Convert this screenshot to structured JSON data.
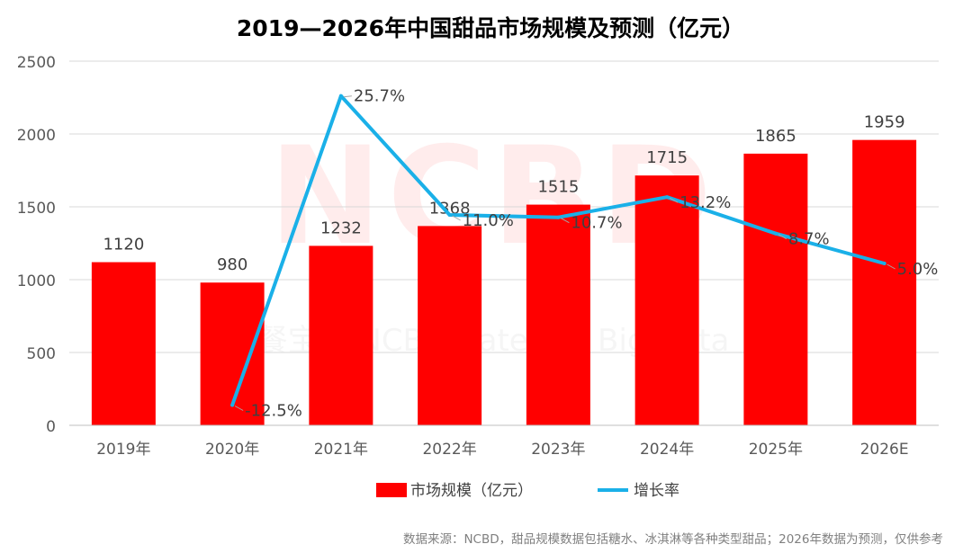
{
  "chart_data": {
    "type": "bar",
    "title": "2019—2026年中国甜品市场规模及预测（亿元）",
    "categories": [
      "2019年",
      "2020年",
      "2021年",
      "2022年",
      "2023年",
      "2024年",
      "2025年",
      "2026E"
    ],
    "series": [
      {
        "name": "市场规模（亿元）",
        "type": "bar",
        "values": [
          1120,
          980,
          1232,
          1368,
          1515,
          1715,
          1865,
          1959
        ],
        "labels": [
          "1120",
          "980",
          "1232",
          "1368",
          "1515",
          "1715",
          "1865",
          "1959"
        ],
        "color": "#ff0000"
      },
      {
        "name": "增长率",
        "type": "line",
        "values": [
          null,
          -12.5,
          25.7,
          11.0,
          10.7,
          13.2,
          8.7,
          5.0
        ],
        "labels": [
          "",
          "-12.5%",
          "25.7%",
          "11.0%",
          "10.7%",
          "13.2%",
          "8.7%",
          "5.0%"
        ],
        "color": "#1ab0e8"
      }
    ],
    "ylim": [
      0,
      2500
    ],
    "yticks": [
      0,
      500,
      1000,
      1500,
      2000,
      2500
    ],
    "ytick_labels": [
      "0",
      "500",
      "1000",
      "1500",
      "2000",
      "2500"
    ],
    "growth_range": [
      -15,
      30
    ],
    "grid": true,
    "legend": "bottom-center"
  },
  "watermark": {
    "logo": "NCBD",
    "text": "餐宝典 NCBD Catering Big Data"
  },
  "footer": {
    "source": "数据来源：NCBD，甜品规模数据包括糖水、冰淇淋等各种类型甜品；2026年数据为预测，仅供参考"
  },
  "colors": {
    "bar": "#ff0000",
    "line": "#1ab0e8",
    "grid": "#d9d9d9",
    "axis_text": "#595959",
    "title": "#000000"
  }
}
